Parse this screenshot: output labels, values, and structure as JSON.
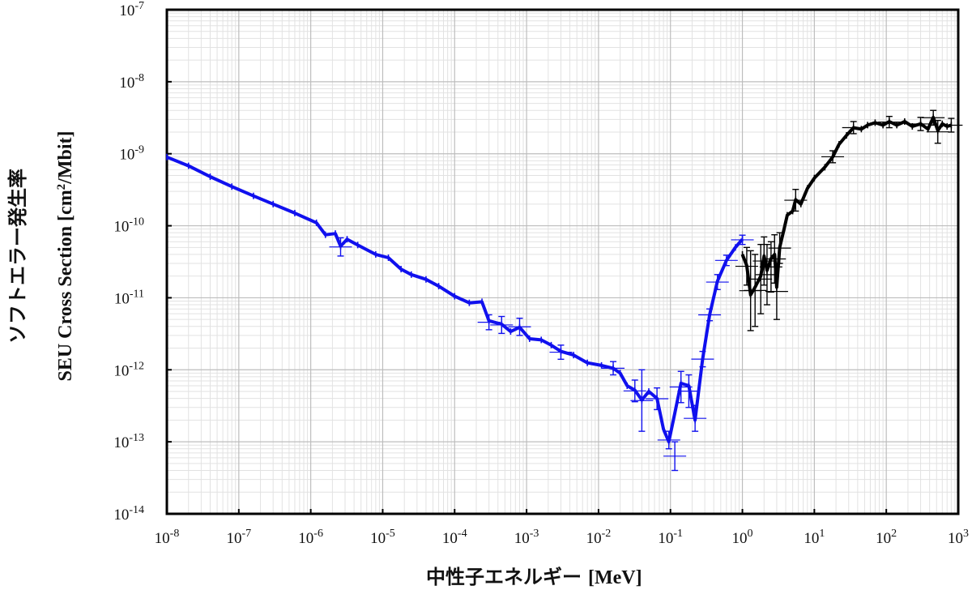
{
  "chart_data": {
    "type": "line",
    "x_scale": "log",
    "y_scale": "log",
    "xlim": [
      1e-08,
      1000
    ],
    "ylim": [
      1e-14,
      1e-07
    ],
    "grid": true,
    "legend": "none",
    "xlabel": {
      "jp": "中性子エネルギー",
      "unit": "[MeV]"
    },
    "ylabel": {
      "jp": "ソフトエラー発生率",
      "en": "SEU Cross Section [cm",
      "sup": "2",
      "tail": "/Mbit]"
    },
    "x_ticks": [
      {
        "base": "10",
        "exp": "-8"
      },
      {
        "base": "10",
        "exp": "-7"
      },
      {
        "base": "10",
        "exp": "-6"
      },
      {
        "base": "10",
        "exp": "-5"
      },
      {
        "base": "10",
        "exp": "-4"
      },
      {
        "base": "10",
        "exp": "-3"
      },
      {
        "base": "10",
        "exp": "-2"
      },
      {
        "base": "10",
        "exp": "-1"
      },
      {
        "base": "10",
        "exp": "0"
      },
      {
        "base": "10",
        "exp": "1"
      },
      {
        "base": "10",
        "exp": "2"
      },
      {
        "base": "10",
        "exp": "3"
      }
    ],
    "y_ticks": [
      {
        "base": "10",
        "exp": "-14"
      },
      {
        "base": "10",
        "exp": "-13"
      },
      {
        "base": "10",
        "exp": "-12"
      },
      {
        "base": "10",
        "exp": "-11"
      },
      {
        "base": "10",
        "exp": "-10"
      },
      {
        "base": "10",
        "exp": "-9"
      },
      {
        "base": "10",
        "exp": "-8"
      },
      {
        "base": "10",
        "exp": "-7"
      }
    ],
    "series": [
      {
        "color": "#1010ee",
        "points": [
          [
            1e-08,
            9e-10
          ],
          [
            2e-08,
            6.8e-10
          ],
          [
            4e-08,
            4.8e-10
          ],
          [
            8e-08,
            3.5e-10
          ],
          [
            1.6e-07,
            2.6e-10
          ],
          [
            3e-07,
            2e-10
          ],
          [
            6e-07,
            1.5e-10
          ],
          [
            1.2e-06,
            1.1e-10
          ],
          [
            1.6e-06,
            7.5e-11
          ],
          [
            2.2e-06,
            7.8e-11
          ],
          [
            2.6e-06,
            5.2e-11
          ],
          [
            3.2e-06,
            6.5e-11
          ],
          [
            4.5e-06,
            5.4e-11
          ],
          [
            8e-06,
            4e-11
          ],
          [
            1.2e-05,
            3.6e-11
          ],
          [
            1.8e-05,
            2.5e-11
          ],
          [
            2.5e-05,
            2.1e-11
          ],
          [
            4e-05,
            1.8e-11
          ],
          [
            6e-05,
            1.45e-11
          ],
          [
            0.0001,
            1.05e-11
          ],
          [
            0.00016,
            8.5e-12
          ],
          [
            0.00024,
            8.8e-12
          ],
          [
            0.0003,
            4.8e-12
          ],
          [
            0.00045,
            4.3e-12
          ],
          [
            0.0006,
            3.4e-12
          ],
          [
            0.0008,
            3.9e-12
          ],
          [
            0.0011,
            2.7e-12
          ],
          [
            0.0016,
            2.6e-12
          ],
          [
            0.0022,
            2.2e-12
          ],
          [
            0.003,
            1.8e-12
          ],
          [
            0.0045,
            1.6e-12
          ],
          [
            0.007,
            1.25e-12
          ],
          [
            0.011,
            1.15e-12
          ],
          [
            0.016,
            1.05e-12
          ],
          [
            0.02,
            9e-13
          ],
          [
            0.025,
            6e-13
          ],
          [
            0.032,
            5.2e-13
          ],
          [
            0.04,
            3.8e-13
          ],
          [
            0.05,
            5e-13
          ],
          [
            0.065,
            4e-13
          ],
          [
            0.08,
            1.5e-13
          ],
          [
            0.095,
            1e-13
          ],
          [
            0.115,
            2.5e-13
          ],
          [
            0.14,
            6.5e-13
          ],
          [
            0.18,
            6e-13
          ],
          [
            0.22,
            2e-13
          ],
          [
            0.28,
            1.4e-12
          ],
          [
            0.35,
            5.8e-12
          ],
          [
            0.45,
            1.7e-11
          ],
          [
            0.6,
            3.3e-11
          ],
          [
            0.8,
            5e-11
          ],
          [
            1.0,
            6.5e-11
          ]
        ],
        "error_bars": [
          [
            2.6e-06,
            3.8e-11,
            6.8e-11
          ],
          [
            0.0003,
            3.6e-12,
            5.8e-12
          ],
          [
            0.00045,
            3.2e-12,
            5.5e-12
          ],
          [
            0.0008,
            3e-12,
            5.2e-12
          ],
          [
            0.003,
            1.4e-12,
            2.2e-12
          ],
          [
            0.016,
            8.5e-13,
            1.3e-12
          ],
          [
            0.032,
            3.6e-13,
            7.2e-13
          ],
          [
            0.04,
            1.4e-13,
            1e-12
          ],
          [
            0.065,
            2.8e-13,
            5.6e-13
          ],
          [
            0.095,
            8e-14,
            1.4e-13
          ],
          [
            0.115,
            4e-14,
            1e-13
          ],
          [
            0.14,
            3.5e-13,
            9.5e-13
          ],
          [
            0.18,
            3e-13,
            8.5e-13
          ],
          [
            0.22,
            1.4e-13,
            3.2e-13
          ],
          [
            0.28,
            1.1e-12,
            1.8e-12
          ],
          [
            0.35,
            4.8e-12,
            7e-12
          ],
          [
            0.45,
            1.3e-11,
            2.1e-11
          ],
          [
            0.6,
            2.8e-11,
            3.9e-11
          ],
          [
            1.0,
            5.5e-11,
            7.4e-11
          ]
        ]
      },
      {
        "color": "#000000",
        "points": [
          [
            1.0,
            4e-11
          ],
          [
            1.15,
            2.8e-11
          ],
          [
            1.3,
            1.1e-11
          ],
          [
            1.5,
            1.4e-11
          ],
          [
            1.8,
            2e-11
          ],
          [
            2.0,
            3.8e-11
          ],
          [
            2.2,
            2.4e-11
          ],
          [
            2.5,
            3.5e-11
          ],
          [
            2.8,
            4e-11
          ],
          [
            3.0,
            1.4e-11
          ],
          [
            3.3,
            5e-11
          ],
          [
            3.8,
            9e-11
          ],
          [
            4.2,
            1.4e-10
          ],
          [
            5,
            1.6e-10
          ],
          [
            5.5,
            2.3e-10
          ],
          [
            6.5,
            2e-10
          ],
          [
            8,
            3.3e-10
          ],
          [
            10,
            4.6e-10
          ],
          [
            14,
            6.5e-10
          ],
          [
            18,
            9e-10
          ],
          [
            22,
            1.35e-09
          ],
          [
            28,
            1.8e-09
          ],
          [
            35,
            2.3e-09
          ],
          [
            45,
            2.2e-09
          ],
          [
            55,
            2.5e-09
          ],
          [
            70,
            2.7e-09
          ],
          [
            90,
            2.5e-09
          ],
          [
            110,
            2.8e-09
          ],
          [
            140,
            2.5e-09
          ],
          [
            180,
            2.8e-09
          ],
          [
            230,
            2.4e-09
          ],
          [
            300,
            2.6e-09
          ],
          [
            380,
            2.2e-09
          ],
          [
            450,
            3.2e-09
          ],
          [
            520,
            2.1e-09
          ],
          [
            600,
            2.6e-09
          ],
          [
            700,
            2.4e-09
          ],
          [
            800,
            2.5e-09
          ]
        ],
        "error_bars": [
          [
            1.15,
            1.5e-11,
            5e-11
          ],
          [
            1.3,
            3.5e-12,
            4.5e-11
          ],
          [
            1.5,
            4e-12,
            4e-11
          ],
          [
            1.8,
            6e-12,
            5.5e-11
          ],
          [
            2.0,
            1.5e-11,
            7e-11
          ],
          [
            2.2,
            8e-12,
            5.5e-11
          ],
          [
            2.5,
            1.2e-11,
            6e-11
          ],
          [
            2.8,
            1.6e-11,
            7.5e-11
          ],
          [
            3.0,
            5e-12,
            3e-11
          ],
          [
            3.3,
            3e-11,
            8e-11
          ],
          [
            5.5,
            1.6e-10,
            3.2e-10
          ],
          [
            18,
            7.5e-10,
            1.1e-09
          ],
          [
            35,
            1.9e-09,
            2.8e-09
          ],
          [
            110,
            2.3e-09,
            3.3e-09
          ],
          [
            300,
            2.1e-09,
            3.2e-09
          ],
          [
            450,
            2.5e-09,
            4e-09
          ],
          [
            520,
            1.4e-09,
            2.9e-09
          ],
          [
            800,
            2e-09,
            3.1e-09
          ]
        ]
      }
    ]
  }
}
